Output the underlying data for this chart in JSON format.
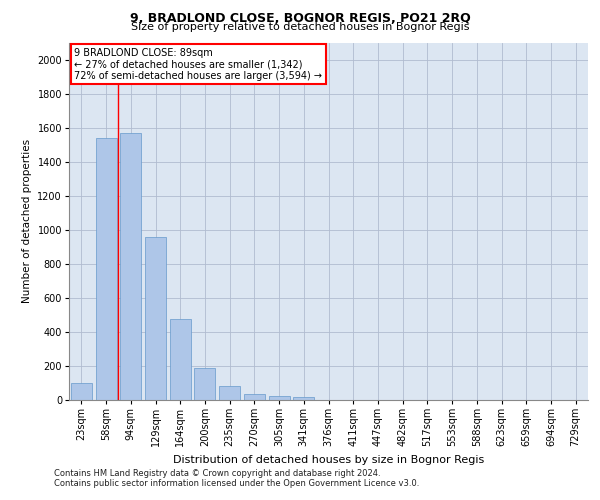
{
  "title1": "9, BRADLOND CLOSE, BOGNOR REGIS, PO21 2RQ",
  "title2": "Size of property relative to detached houses in Bognor Regis",
  "xlabel": "Distribution of detached houses by size in Bognor Regis",
  "ylabel": "Number of detached properties",
  "footnote1": "Contains HM Land Registry data © Crown copyright and database right 2024.",
  "footnote2": "Contains public sector information licensed under the Open Government Licence v3.0.",
  "categories": [
    "23sqm",
    "58sqm",
    "94sqm",
    "129sqm",
    "164sqm",
    "200sqm",
    "235sqm",
    "270sqm",
    "305sqm",
    "341sqm",
    "376sqm",
    "411sqm",
    "447sqm",
    "482sqm",
    "517sqm",
    "553sqm",
    "588sqm",
    "623sqm",
    "659sqm",
    "694sqm",
    "729sqm"
  ],
  "values": [
    100,
    1540,
    1570,
    960,
    475,
    190,
    85,
    35,
    25,
    15,
    0,
    0,
    0,
    0,
    0,
    0,
    0,
    0,
    0,
    0,
    0
  ],
  "bar_color": "#aec6e8",
  "bar_edge_color": "#6699cc",
  "vline_index": 1.5,
  "vline_color": "red",
  "annotation_line1": "9 BRADLOND CLOSE: 89sqm",
  "annotation_line2": "← 27% of detached houses are smaller (1,342)",
  "annotation_line3": "72% of semi-detached houses are larger (3,594) →",
  "annotation_box_color": "white",
  "annotation_box_edge": "red",
  "ylim": [
    0,
    2100
  ],
  "yticks": [
    0,
    200,
    400,
    600,
    800,
    1000,
    1200,
    1400,
    1600,
    1800,
    2000
  ],
  "grid_color": "#b0bcd0",
  "bg_color": "#dce6f2",
  "title1_fontsize": 9,
  "title2_fontsize": 8,
  "xlabel_fontsize": 8,
  "ylabel_fontsize": 7.5,
  "tick_fontsize": 7,
  "annot_fontsize": 7,
  "footnote_fontsize": 6
}
